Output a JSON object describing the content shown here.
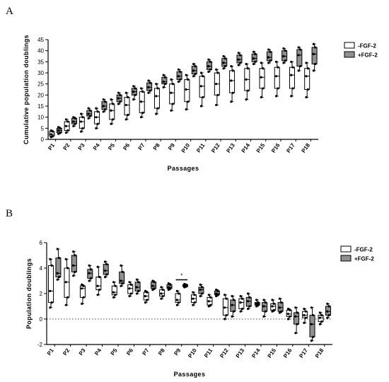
{
  "panels": {
    "a_letter": "A",
    "b_letter": "B"
  },
  "colors": {
    "minus_fgf": "#ffffff",
    "plus_fgf": "#909090",
    "stroke": "#000000"
  },
  "chart_data": [
    {
      "panel": "A",
      "type": "box",
      "xlabel": "Passages",
      "ylabel": "Cumulative population doublings",
      "ylim": [
        0,
        45
      ],
      "yticks": [
        0,
        5,
        10,
        15,
        20,
        25,
        30,
        35,
        40,
        45
      ],
      "categories": [
        "P1",
        "P2",
        "P3",
        "P4",
        "P5",
        "P6",
        "P7",
        "P8",
        "P9",
        "P10",
        "P11",
        "P12",
        "P13",
        "P14",
        "P15",
        "P16",
        "P17",
        "P18"
      ],
      "legend": [
        "-FGF-2",
        "+FGF-2"
      ],
      "legend_position": "right",
      "series": [
        {
          "name": "-FGF-2",
          "boxes": [
            {
              "min": 1,
              "q1": 1.5,
              "median": 2.3,
              "q3": 3.5,
              "max": 4
            },
            {
              "min": 3,
              "q1": 4,
              "median": 6,
              "q3": 8,
              "max": 9
            },
            {
              "min": 3.5,
              "q1": 5,
              "median": 8,
              "q3": 10,
              "max": 11.5
            },
            {
              "min": 5,
              "q1": 7,
              "median": 10,
              "q3": 12.5,
              "max": 14
            },
            {
              "min": 7,
              "q1": 9,
              "median": 13,
              "q3": 16,
              "max": 18
            },
            {
              "min": 9,
              "q1": 11,
              "median": 15.5,
              "q3": 19,
              "max": 21
            },
            {
              "min": 10,
              "q1": 12,
              "median": 17,
              "q3": 21.5,
              "max": 23
            },
            {
              "min": 11.5,
              "q1": 14,
              "median": 19.5,
              "q3": 23,
              "max": 25
            },
            {
              "min": 13,
              "q1": 16,
              "median": 21,
              "q3": 25,
              "max": 27
            },
            {
              "min": 13.5,
              "q1": 17,
              "median": 22.5,
              "q3": 27,
              "max": 29
            },
            {
              "min": 15,
              "q1": 19,
              "median": 24,
              "q3": 28.5,
              "max": 30
            },
            {
              "min": 15.5,
              "q1": 20,
              "median": 25,
              "q3": 30,
              "max": 31.5
            },
            {
              "min": 17,
              "q1": 21,
              "median": 26.5,
              "q3": 31,
              "max": 33
            },
            {
              "min": 18,
              "q1": 22,
              "median": 27,
              "q3": 32,
              "max": 34
            },
            {
              "min": 19,
              "q1": 23,
              "median": 28,
              "q3": 32,
              "max": 34.5
            },
            {
              "min": 19.5,
              "q1": 23,
              "median": 28.5,
              "q3": 32.5,
              "max": 35
            },
            {
              "min": 19.5,
              "q1": 23,
              "median": 29,
              "q3": 32.5,
              "max": 35
            },
            {
              "min": 19,
              "q1": 22.5,
              "median": 28.5,
              "q3": 32,
              "max": 34.5
            }
          ]
        },
        {
          "name": "+FGF-2",
          "boxes": [
            {
              "min": 2.5,
              "q1": 3,
              "median": 4,
              "q3": 5,
              "max": 5.5
            },
            {
              "min": 6,
              "q1": 7,
              "median": 8,
              "q3": 9.5,
              "max": 10
            },
            {
              "min": 9.5,
              "q1": 10.5,
              "median": 11.5,
              "q3": 13,
              "max": 14
            },
            {
              "min": 12.5,
              "q1": 13.5,
              "median": 15,
              "q3": 17,
              "max": 18
            },
            {
              "min": 16,
              "q1": 17,
              "median": 18.5,
              "q3": 20,
              "max": 21
            },
            {
              "min": 18,
              "q1": 20,
              "median": 21.5,
              "q3": 23,
              "max": 24
            },
            {
              "min": 21,
              "q1": 22,
              "median": 23.5,
              "q3": 25.5,
              "max": 26.5
            },
            {
              "min": 23.5,
              "q1": 25,
              "median": 26,
              "q3": 28,
              "max": 29
            },
            {
              "min": 26,
              "q1": 27,
              "median": 28.5,
              "q3": 30.5,
              "max": 31.5
            },
            {
              "min": 28.5,
              "q1": 29.5,
              "median": 31,
              "q3": 33,
              "max": 34
            },
            {
              "min": 30.5,
              "q1": 31.5,
              "median": 33,
              "q3": 35,
              "max": 36
            },
            {
              "min": 32,
              "q1": 33,
              "median": 34.5,
              "q3": 36.5,
              "max": 37.5
            },
            {
              "min": 33.5,
              "q1": 34.5,
              "median": 36,
              "q3": 38,
              "max": 39
            },
            {
              "min": 34,
              "q1": 35,
              "median": 36.5,
              "q3": 38.5,
              "max": 39.5
            },
            {
              "min": 34.5,
              "q1": 35.5,
              "median": 37,
              "q3": 39.5,
              "max": 40.5
            },
            {
              "min": 34.5,
              "q1": 35.5,
              "median": 37.5,
              "q3": 40,
              "max": 41
            },
            {
              "min": 31,
              "q1": 33,
              "median": 38,
              "q3": 40.5,
              "max": 41.5
            },
            {
              "min": 31,
              "q1": 34,
              "median": 38.5,
              "q3": 41.5,
              "max": 43
            }
          ]
        }
      ]
    },
    {
      "panel": "B",
      "type": "box",
      "xlabel": "Passages",
      "ylabel": "Population doublings",
      "ylim": [
        -2,
        6
      ],
      "yticks": [
        -2,
        0,
        2,
        4,
        6
      ],
      "reference_line": 0,
      "categories": [
        "P1",
        "P2",
        "P3",
        "P4",
        "P5",
        "P6",
        "P7",
        "P8",
        "P9",
        "P10",
        "P11",
        "P12",
        "P13",
        "P14",
        "P15",
        "P16",
        "P17",
        "P18"
      ],
      "legend": [
        "-FGF-2",
        "+FGF-2"
      ],
      "legend_position": "right",
      "annotations": [
        {
          "text": "*",
          "category": "P9"
        }
      ],
      "series": [
        {
          "name": "-FGF-2",
          "boxes": [
            {
              "min": 0.9,
              "q1": 1.3,
              "median": 2.2,
              "q3": 4.2,
              "max": 4.7
            },
            {
              "min": 1.1,
              "q1": 1.7,
              "median": 2.9,
              "q3": 4.0,
              "max": 4.7
            },
            {
              "min": 1.2,
              "q1": 1.7,
              "median": 2.4,
              "q3": 2.6,
              "max": 2.7
            },
            {
              "min": 1.9,
              "q1": 2.3,
              "median": 2.6,
              "q3": 3.3,
              "max": 4.1
            },
            {
              "min": 1.7,
              "q1": 1.9,
              "median": 2.1,
              "q3": 2.6,
              "max": 2.9
            },
            {
              "min": 1.8,
              "q1": 2.0,
              "median": 2.4,
              "q3": 2.7,
              "max": 2.9
            },
            {
              "min": 1.3,
              "q1": 1.5,
              "median": 1.8,
              "q3": 2.1,
              "max": 2.2
            },
            {
              "min": 1.6,
              "q1": 1.8,
              "median": 2.0,
              "q3": 2.3,
              "max": 2.5
            },
            {
              "min": 1.1,
              "q1": 1.3,
              "median": 1.5,
              "q3": 2.0,
              "max": 2.2
            },
            {
              "min": 1.1,
              "q1": 1.3,
              "median": 1.6,
              "q3": 1.9,
              "max": 2.1
            },
            {
              "min": 1.0,
              "q1": 1.1,
              "median": 1.4,
              "q3": 1.7,
              "max": 1.9
            },
            {
              "min": 0.0,
              "q1": 0.3,
              "median": 0.9,
              "q3": 1.6,
              "max": 1.9
            },
            {
              "min": 0.6,
              "q1": 0.8,
              "median": 1.3,
              "q3": 1.6,
              "max": 1.8
            },
            {
              "min": 1.0,
              "q1": 1.1,
              "median": 1.2,
              "q3": 1.3,
              "max": 1.5
            },
            {
              "min": 0.6,
              "q1": 0.7,
              "median": 1.0,
              "q3": 1.2,
              "max": 1.5
            },
            {
              "min": 0.0,
              "q1": 0.2,
              "median": 0.4,
              "q3": 0.7,
              "max": 0.8
            },
            {
              "min": -0.3,
              "q1": 0.1,
              "median": 0.3,
              "q3": 0.6,
              "max": 0.8
            },
            {
              "min": -0.4,
              "q1": -0.2,
              "median": 0.1,
              "q3": 0.3,
              "max": 0.5
            }
          ]
        },
        {
          "name": "+FGF-2",
          "boxes": [
            {
              "min": 3.1,
              "q1": 3.3,
              "median": 3.6,
              "q3": 4.8,
              "max": 5.5
            },
            {
              "min": 3.4,
              "q1": 3.7,
              "median": 4.2,
              "q3": 5.0,
              "max": 5.3
            },
            {
              "min": 3.0,
              "q1": 3.2,
              "median": 3.6,
              "q3": 3.9,
              "max": 4.2
            },
            {
              "min": 3.3,
              "q1": 3.5,
              "median": 3.8,
              "q3": 4.3,
              "max": 4.5
            },
            {
              "min": 2.6,
              "q1": 2.8,
              "median": 3.0,
              "q3": 3.7,
              "max": 4.2
            },
            {
              "min": 2.0,
              "q1": 2.2,
              "median": 2.5,
              "q3": 2.9,
              "max": 3.1
            },
            {
              "min": 2.3,
              "q1": 2.4,
              "median": 2.6,
              "q3": 2.9,
              "max": 3.0
            },
            {
              "min": 2.3,
              "q1": 2.4,
              "median": 2.5,
              "q3": 2.7,
              "max": 2.8
            },
            {
              "min": 2.5,
              "q1": 2.55,
              "median": 2.6,
              "q3": 2.7,
              "max": 2.75
            },
            {
              "min": 1.8,
              "q1": 2.0,
              "median": 2.3,
              "q3": 2.5,
              "max": 2.7
            },
            {
              "min": 1.8,
              "q1": 1.9,
              "median": 2.0,
              "q3": 2.2,
              "max": 2.3
            },
            {
              "min": 0.2,
              "q1": 0.6,
              "median": 1.1,
              "q3": 1.5,
              "max": 1.8
            },
            {
              "min": 0.8,
              "q1": 1.0,
              "median": 1.4,
              "q3": 1.7,
              "max": 2.0
            },
            {
              "min": 0.2,
              "q1": 0.6,
              "median": 1.0,
              "q3": 1.3,
              "max": 1.5
            },
            {
              "min": 0.5,
              "q1": 0.6,
              "median": 0.9,
              "q3": 1.3,
              "max": 1.6
            },
            {
              "min": -1.1,
              "q1": -0.4,
              "median": 0.2,
              "q3": 0.5,
              "max": 0.9
            },
            {
              "min": -1.7,
              "q1": -1.4,
              "median": -0.4,
              "q3": 0.3,
              "max": 0.9
            },
            {
              "min": 0.1,
              "q1": 0.3,
              "median": 0.6,
              "q3": 1.0,
              "max": 1.2
            }
          ]
        }
      ]
    }
  ]
}
